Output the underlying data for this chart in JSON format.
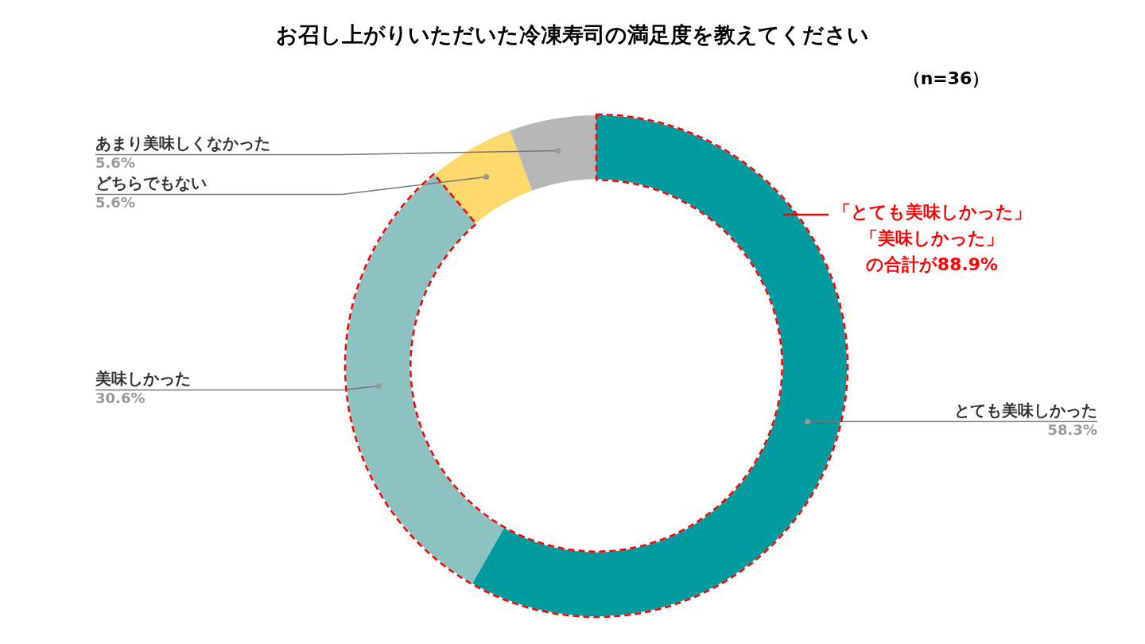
{
  "chart_data": {
    "type": "donut",
    "title": "お召し上がりいただいた冷凍寿司の満足度を教えてください",
    "subtitle": "（n=36）",
    "categories": [
      "とても美味しかった",
      "美味しかった",
      "どちらでもない",
      "あまり美味しくなかった"
    ],
    "values": [
      58.3,
      30.6,
      5.6,
      5.6
    ],
    "colors": [
      "#009b9e",
      "#8cc2c0",
      "#fdd96c",
      "#b7b7b7"
    ],
    "legend": false,
    "value_labels": [
      "58.3%",
      "30.6%",
      "5.6%",
      "5.6%"
    ],
    "annotations": [
      "「とても美味しかった」",
      "「美味しかった」",
      "の合計が88.9%"
    ]
  }
}
